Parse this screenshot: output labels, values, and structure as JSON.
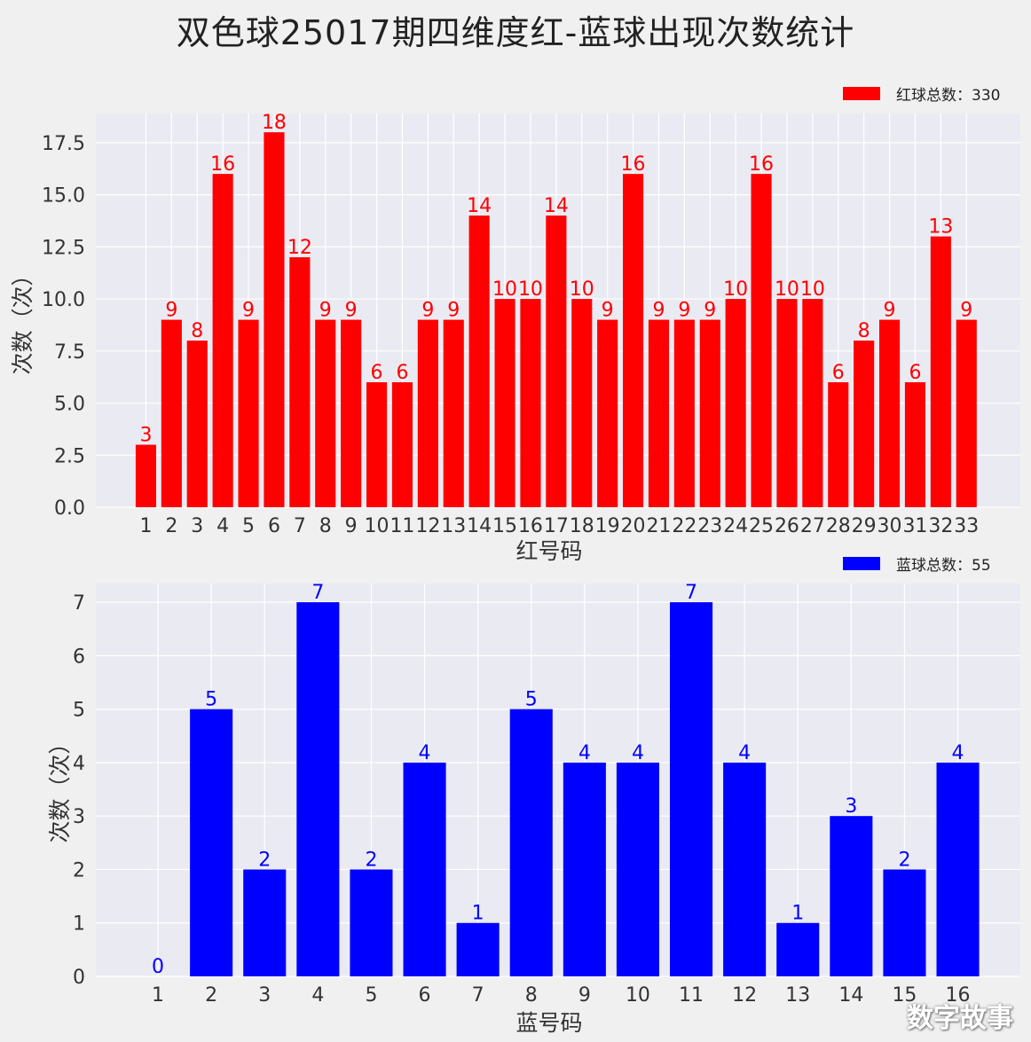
{
  "title": "双色球25017期四维度红-蓝球出现次数统计",
  "watermark": "数字故事",
  "chart_data": [
    {
      "type": "bar",
      "name": "red",
      "color": "#ff0000",
      "categories": [
        "1",
        "2",
        "3",
        "4",
        "5",
        "6",
        "7",
        "8",
        "9",
        "10",
        "11",
        "12",
        "13",
        "14",
        "15",
        "16",
        "17",
        "18",
        "19",
        "20",
        "21",
        "22",
        "23",
        "24",
        "25",
        "26",
        "27",
        "28",
        "29",
        "30",
        "31",
        "32",
        "33"
      ],
      "values": [
        3,
        9,
        8,
        16,
        9,
        18,
        12,
        9,
        9,
        6,
        6,
        9,
        9,
        14,
        10,
        10,
        14,
        10,
        9,
        16,
        9,
        9,
        9,
        10,
        16,
        10,
        10,
        6,
        8,
        9,
        6,
        13,
        9
      ],
      "xlabel": "红号码",
      "ylabel": "次数（次）",
      "ylim": [
        0,
        18.9
      ],
      "yticks": [
        0.0,
        2.5,
        5.0,
        7.5,
        10.0,
        12.5,
        15.0,
        17.5
      ],
      "ytick_labels": [
        "0.0",
        "2.5",
        "5.0",
        "7.5",
        "10.0",
        "12.5",
        "15.0",
        "17.5"
      ],
      "legend": "红球总数：330",
      "legend_position": "top-right",
      "grid": true
    },
    {
      "type": "bar",
      "name": "blue",
      "color": "#0000ff",
      "categories": [
        "1",
        "2",
        "3",
        "4",
        "5",
        "6",
        "7",
        "8",
        "9",
        "10",
        "11",
        "12",
        "13",
        "14",
        "15",
        "16"
      ],
      "values": [
        0,
        5,
        2,
        7,
        2,
        4,
        1,
        5,
        4,
        4,
        7,
        4,
        1,
        3,
        2,
        4
      ],
      "xlabel": "蓝号码",
      "ylabel": "次数（次）",
      "ylim": [
        0,
        7.35
      ],
      "yticks": [
        0,
        1,
        2,
        3,
        4,
        5,
        6,
        7
      ],
      "ytick_labels": [
        "0",
        "1",
        "2",
        "3",
        "4",
        "5",
        "6",
        "7"
      ],
      "legend": "蓝球总数：55",
      "legend_position": "top-right",
      "grid": true
    }
  ]
}
